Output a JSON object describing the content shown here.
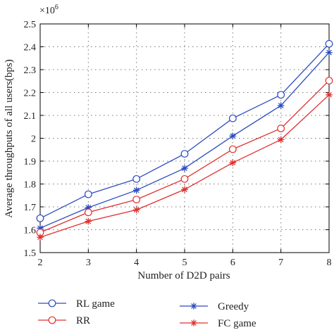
{
  "chart_data": {
    "type": "line",
    "xlabel": "Number of D2D pairs",
    "ylabel": "Average throughputs of all users(bps)",
    "y_multiplier_base": "×10",
    "y_multiplier_exp": "6",
    "x": [
      2,
      3,
      4,
      5,
      6,
      7,
      8
    ],
    "xlim": [
      2,
      8
    ],
    "ylim": [
      1.5,
      2.5
    ],
    "xticks": [
      "2",
      "3",
      "4",
      "5",
      "6",
      "7",
      "8"
    ],
    "yticks": [
      "1.5",
      "1.6",
      "1.7",
      "1.8",
      "1.9",
      "2",
      "2.1",
      "2.2",
      "2.3",
      "2.4",
      "2.5"
    ],
    "grid": true,
    "legend_placement": "bottom",
    "series": [
      {
        "name": "RL game",
        "color": "#2c4bbf",
        "marker": "circle",
        "values": [
          1.65,
          1.755,
          1.822,
          1.932,
          2.087,
          2.19,
          2.413
        ]
      },
      {
        "name": "Greedy",
        "color": "#2c4bbf",
        "marker": "star",
        "values": [
          1.607,
          1.697,
          1.773,
          1.869,
          2.01,
          2.143,
          2.375
        ]
      },
      {
        "name": "RR",
        "color": "#e03030",
        "marker": "circle",
        "values": [
          1.588,
          1.676,
          1.732,
          1.822,
          1.952,
          2.043,
          2.252
        ]
      },
      {
        "name": "FC game",
        "color": "#e03030",
        "marker": "star",
        "values": [
          1.567,
          1.637,
          1.687,
          1.776,
          1.893,
          1.994,
          2.19
        ]
      }
    ]
  }
}
